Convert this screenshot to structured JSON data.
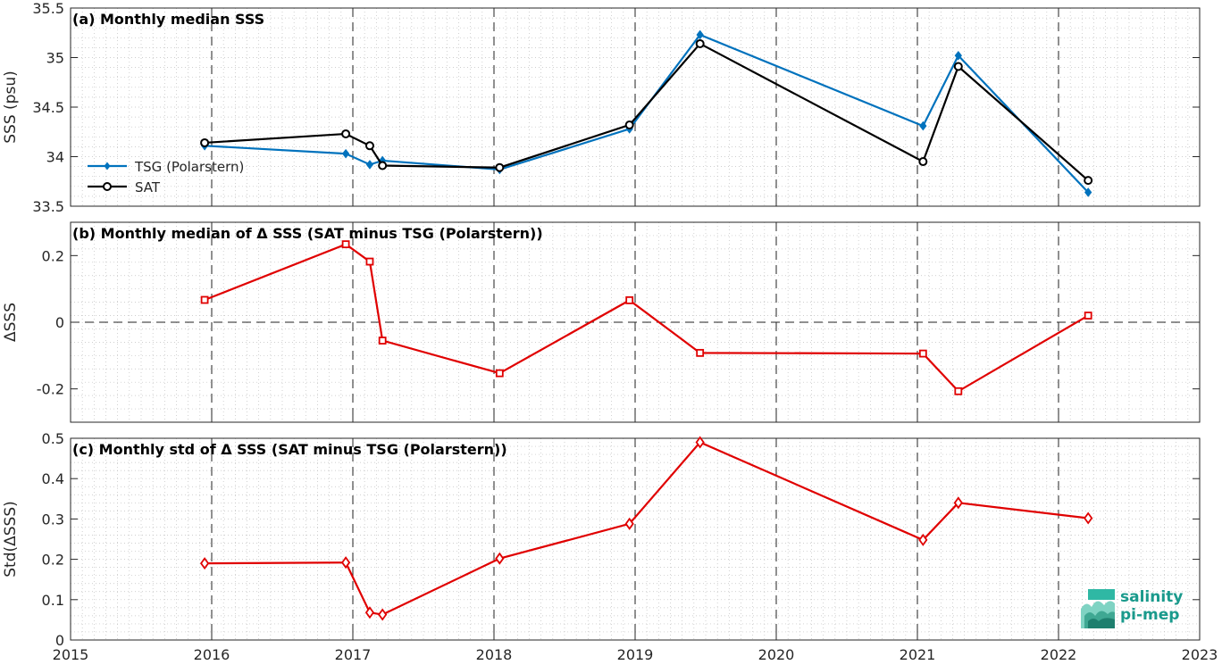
{
  "logo": {
    "line1": "salinity",
    "line2": "pi-mep"
  },
  "colors": {
    "tsg": "#0072BD",
    "sat": "#000000",
    "delta": "#E00000",
    "grid": "#bfbfbf",
    "axis": "#262626"
  },
  "chart_data": [
    {
      "type": "line",
      "title": "(a) Monthly median SSS",
      "ylabel": "SSS (psu)",
      "ylim": [
        33.5,
        35.5
      ],
      "yticks": [
        33.5,
        34,
        34.5,
        35,
        35.5
      ],
      "ytick_labels": [
        "33.5",
        "34",
        "34.5",
        "35",
        "35.5"
      ],
      "xlim": [
        2015,
        2023
      ],
      "x": [
        2015.95,
        2016.95,
        2017.12,
        2017.21,
        2018.04,
        2018.96,
        2019.46,
        2021.04,
        2021.29,
        2022.21
      ],
      "series": [
        {
          "name": "TSG (Polarstern)",
          "marker": "diamond-filled",
          "values": [
            34.11,
            34.03,
            33.92,
            33.96,
            33.87,
            34.28,
            35.23,
            34.31,
            35.02,
            33.64
          ]
        },
        {
          "name": "SAT",
          "marker": "circle-open",
          "values": [
            34.14,
            34.23,
            34.11,
            33.91,
            33.89,
            34.32,
            35.14,
            33.95,
            34.91,
            33.76
          ]
        }
      ],
      "legend": "center-left"
    },
    {
      "type": "line",
      "title": "(b) Monthly median of Δ SSS (SAT minus TSG (Polarstern))",
      "ylabel": "ΔSSS",
      "ylim": [
        -0.3,
        0.3
      ],
      "yticks": [
        -0.2,
        0,
        0.2
      ],
      "ytick_labels": [
        "-0.2",
        "0",
        "0.2"
      ],
      "xlim": [
        2015,
        2023
      ],
      "x": [
        2015.95,
        2016.95,
        2017.12,
        2017.21,
        2018.04,
        2018.96,
        2019.46,
        2021.04,
        2021.29,
        2022.21
      ],
      "series": [
        {
          "marker": "square-open",
          "values": [
            0.067,
            0.234,
            0.182,
            -0.055,
            -0.153,
            0.066,
            -0.092,
            -0.094,
            -0.207,
            0.02
          ]
        }
      ],
      "zero_line": true
    },
    {
      "type": "line",
      "title": "(c) Monthly std of Δ SSS (SAT minus TSG (Polarstern))",
      "ylabel": "Std(ΔSSS)",
      "ylim": [
        0,
        0.5
      ],
      "yticks": [
        0,
        0.1,
        0.2,
        0.3,
        0.4,
        0.5
      ],
      "ytick_labels": [
        "0",
        "0.1",
        "0.2",
        "0.3",
        "0.4",
        "0.5"
      ],
      "xlim": [
        2015,
        2023
      ],
      "xticks": [
        2015,
        2016,
        2017,
        2018,
        2019,
        2020,
        2021,
        2022,
        2023
      ],
      "xtick_labels": [
        "2015",
        "2016",
        "2017",
        "2018",
        "2019",
        "2020",
        "2021",
        "2022",
        "2023"
      ],
      "x": [
        2015.95,
        2016.95,
        2017.12,
        2017.21,
        2018.04,
        2018.96,
        2019.46,
        2021.04,
        2021.29,
        2022.21
      ],
      "series": [
        {
          "marker": "diamond-open",
          "values": [
            0.19,
            0.192,
            0.068,
            0.063,
            0.202,
            0.288,
            0.49,
            0.248,
            0.34,
            0.302
          ]
        }
      ]
    }
  ]
}
